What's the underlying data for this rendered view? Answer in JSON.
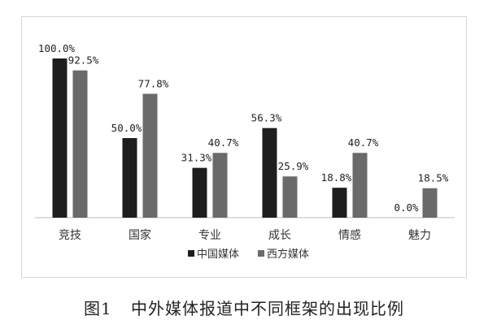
{
  "chart_data": {
    "type": "bar",
    "categories": [
      "竞技",
      "国家",
      "专业",
      "成长",
      "情感",
      "魅力"
    ],
    "series": [
      {
        "name": "中国媒体",
        "values": [
          100.0,
          50.0,
          31.3,
          56.3,
          18.8,
          0.0
        ],
        "labels": [
          "100.0%",
          "50.0%",
          "31.3%",
          "56.3%",
          "18.8%",
          "0.0%"
        ],
        "color": "#1e1e1e"
      },
      {
        "name": "西方媒体",
        "values": [
          92.5,
          77.8,
          40.7,
          25.9,
          40.7,
          18.5
        ],
        "labels": [
          "92.5%",
          "77.8%",
          "40.7%",
          "25.9%",
          "40.7%",
          "18.5%"
        ],
        "color": "#6a6a6a"
      }
    ],
    "ylim": [
      0,
      100
    ],
    "grid": false,
    "legend": "bottom-center"
  },
  "caption": {
    "number": "图1",
    "text": "中外媒体报道中不同框架的出现比例"
  }
}
